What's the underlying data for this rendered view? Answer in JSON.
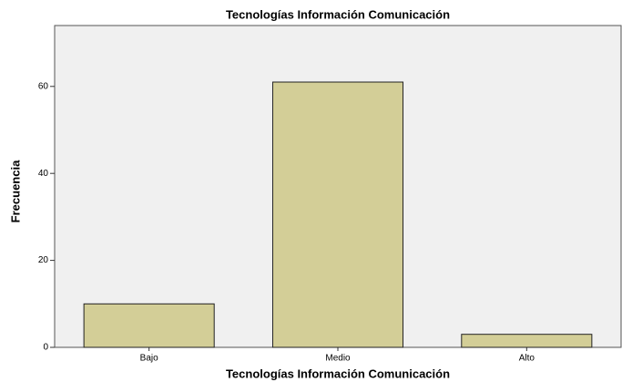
{
  "chart_data": {
    "type": "bar",
    "title": "Tecnologías Información Comunicación",
    "x_label": "Tecnologías Información Comunicación",
    "y_label": "Frecuencia",
    "categories": [
      "Bajo",
      "Medio",
      "Alto"
    ],
    "values": [
      10,
      61,
      3
    ],
    "color": "#d3ce97",
    "ylim": [
      0,
      74
    ],
    "yticks": [
      0,
      20,
      40,
      60
    ],
    "grid": false
  }
}
